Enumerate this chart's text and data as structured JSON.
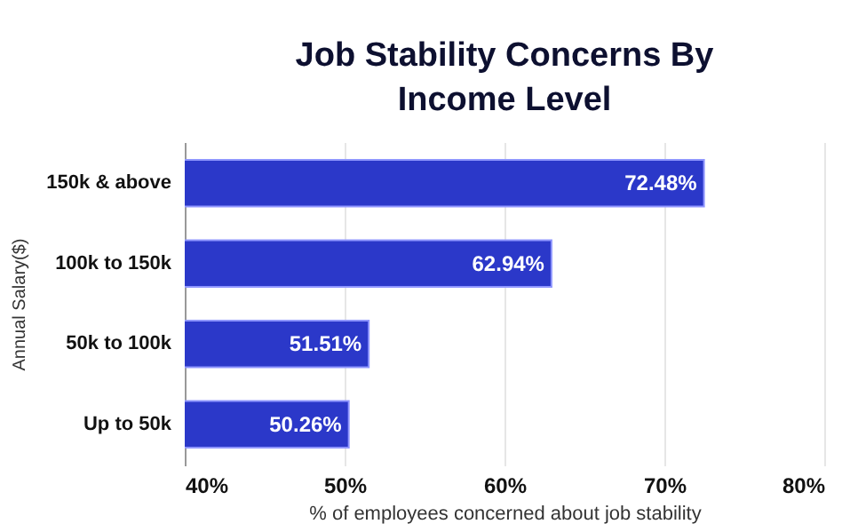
{
  "chart_data": {
    "type": "bar",
    "orientation": "horizontal",
    "title": "Job Stability Concerns By Income Level",
    "xlabel": "% of employees concerned about job stability",
    "ylabel": "Annual Salary($)",
    "categories": [
      "150k & above",
      "100k to 150k",
      "50k to 100k",
      "Up to 50k"
    ],
    "values": [
      72.48,
      62.94,
      51.51,
      50.26
    ],
    "value_labels": [
      "72.48%",
      "62.94%",
      "51.51%",
      "50.26%"
    ],
    "color": "#2b38c9",
    "xlim": [
      40,
      80
    ],
    "xticks": [
      {
        "value": 40,
        "label": "40%"
      },
      {
        "value": 50,
        "label": "50%"
      },
      {
        "value": 60,
        "label": "60%"
      },
      {
        "value": 70,
        "label": "70%"
      },
      {
        "value": 80,
        "label": "80%"
      }
    ],
    "grid": "x"
  }
}
